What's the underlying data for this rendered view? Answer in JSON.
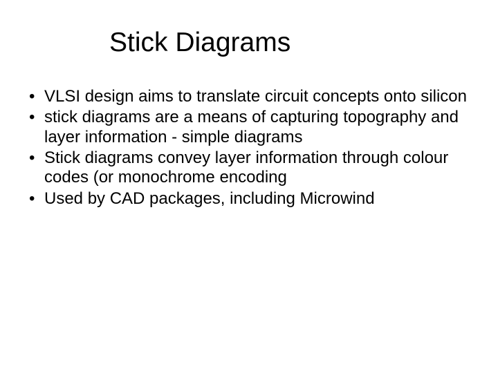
{
  "slide": {
    "title": "Stick Diagrams",
    "bullets": [
      "VLSI design aims to translate circuit concepts onto silicon",
      "stick diagrams are a means of capturing topography and layer information - simple diagrams",
      "Stick diagrams convey layer information through colour codes (or monochrome encoding",
      "Used by CAD packages, including Microwind"
    ],
    "title_fontsize": 39,
    "body_fontsize": 24,
    "text_color": "#000000",
    "background_color": "#ffffff",
    "font_family": "Arial"
  }
}
